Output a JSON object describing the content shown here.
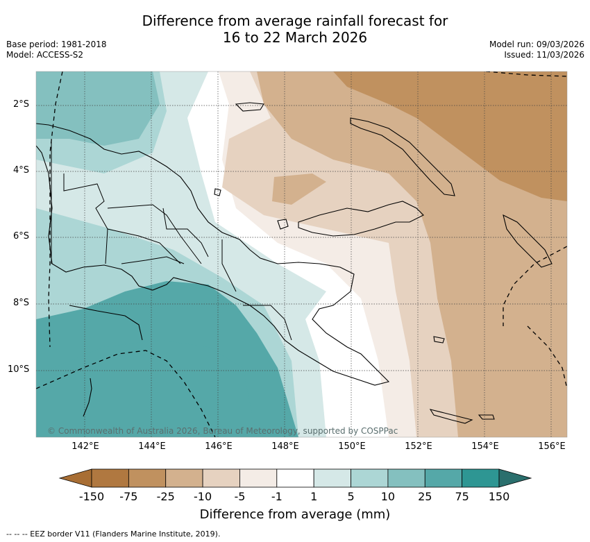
{
  "title": {
    "line1": "Difference from average rainfall forecast for",
    "line2": "16 to 22 March 2026"
  },
  "meta": {
    "base_period": "Base period: 1981-2018",
    "model": "Model: ACCESS-S2",
    "model_run": "Model run: 09/03/2026",
    "issued": "Issued: 11/03/2026"
  },
  "map": {
    "lat_labels": [
      "2°S",
      "4°S",
      "6°S",
      "8°S",
      "10°S"
    ],
    "lon_labels": [
      "142°E",
      "144°E",
      "146°E",
      "148°E",
      "150°E",
      "152°E",
      "154°E",
      "156°E"
    ],
    "copyright": "© Commonwealth of Australia 2026, Bureau of Meteorology, supported by COSPPac"
  },
  "colorbar": {
    "ticks": [
      "-150",
      "-75",
      "-25",
      "-10",
      "-5",
      "-1",
      "1",
      "5",
      "10",
      "25",
      "75",
      "150"
    ],
    "colors": [
      "#a86e34",
      "#b07840",
      "#c0915f",
      "#d3b18e",
      "#e6d2c0",
      "#f4ece6",
      "#ffffff",
      "#d5e8e7",
      "#acd6d5",
      "#84c0bf",
      "#55a8a8",
      "#2e9693",
      "#2a6f6d"
    ],
    "label": "Difference from average (mm)"
  },
  "footnote": "--  --  -- EEZ border V11 (Flanders Marine Institute, 2019)."
}
